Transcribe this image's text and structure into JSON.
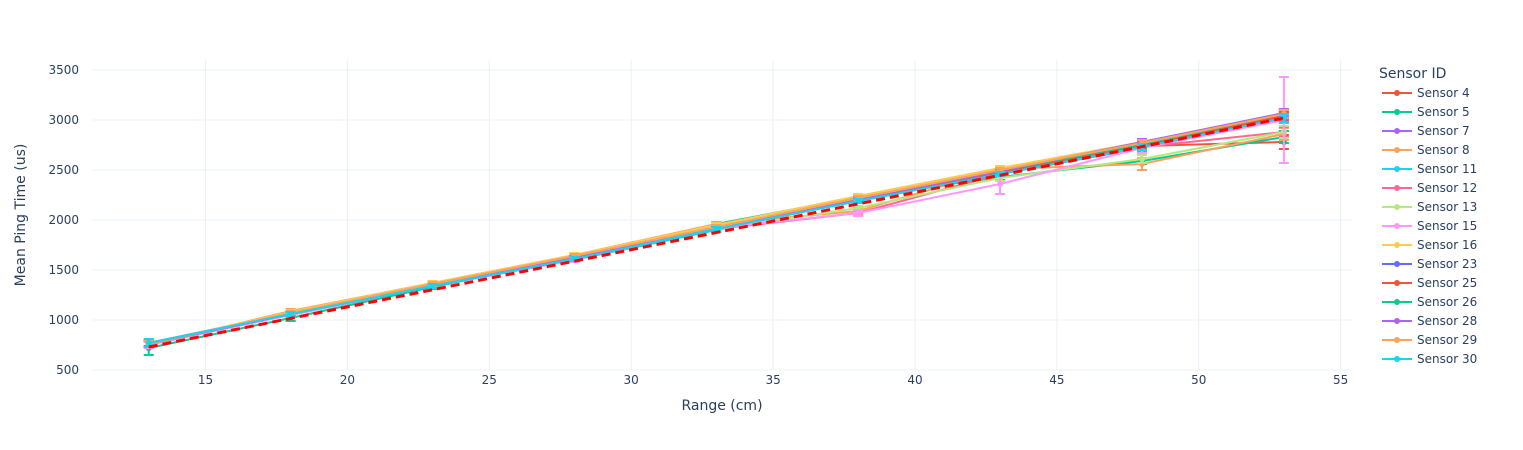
{
  "chart_data": {
    "type": "line",
    "xlabel": "Range (cm)",
    "ylabel": "Mean Ping Time (us)",
    "xlim": [
      11,
      55.4
    ],
    "ylim": [
      500,
      3600
    ],
    "x_ticks": [
      15,
      20,
      25,
      30,
      35,
      40,
      45,
      50,
      55
    ],
    "y_ticks": [
      500,
      1000,
      1500,
      2000,
      2500,
      3000,
      3500
    ],
    "grid": true,
    "legend_title": "Sensor ID",
    "legend_position": "right",
    "x": [
      13,
      18,
      23,
      28,
      33,
      38,
      43,
      48,
      53
    ],
    "series": [
      {
        "name": "Sensor 4",
        "color": "#EF553B",
        "values": [
          760,
          1050,
          1340,
          1620,
          1920,
          2200,
          2470,
          2740,
          2780
        ],
        "errors": [
          30,
          20,
          20,
          20,
          20,
          20,
          30,
          40,
          70
        ]
      },
      {
        "name": "Sensor 5",
        "color": "#00CC96",
        "values": [
          720,
          1020,
          1330,
          1620,
          1960,
          2230,
          2430,
          2590,
          2830
        ],
        "errors": [
          70,
          30,
          20,
          20,
          20,
          20,
          30,
          30,
          60
        ]
      },
      {
        "name": "Sensor 7",
        "color": "#AB63FA",
        "values": [
          760,
          1060,
          1350,
          1620,
          1920,
          2210,
          2490,
          2770,
          3050
        ],
        "errors": [
          30,
          20,
          20,
          20,
          20,
          20,
          20,
          30,
          40
        ]
      },
      {
        "name": "Sensor 8",
        "color": "#FFA15A",
        "values": [
          750,
          1090,
          1370,
          1650,
          1960,
          2090,
          2510,
          2560,
          2860
        ],
        "errors": [
          30,
          20,
          20,
          20,
          20,
          30,
          30,
          60,
          60
        ]
      },
      {
        "name": "Sensor 11",
        "color": "#19D3F3",
        "values": [
          760,
          1060,
          1340,
          1600,
          1900,
          2200,
          2460,
          2720,
          3010
        ],
        "errors": [
          30,
          20,
          20,
          20,
          20,
          20,
          20,
          30,
          40
        ]
      },
      {
        "name": "Sensor 12",
        "color": "#FF6692",
        "values": [
          770,
          1070,
          1350,
          1620,
          1910,
          2070,
          2460,
          2730,
          2880
        ],
        "errors": [
          30,
          20,
          20,
          20,
          20,
          30,
          30,
          40,
          50
        ]
      },
      {
        "name": "Sensor 13",
        "color": "#B6E880",
        "values": [
          760,
          1060,
          1350,
          1620,
          1910,
          2120,
          2420,
          2610,
          2880
        ],
        "errors": [
          30,
          20,
          20,
          20,
          20,
          20,
          30,
          40,
          60
        ]
      },
      {
        "name": "Sensor 15",
        "color": "#FF97FF",
        "values": [
          750,
          1050,
          1340,
          1600,
          1920,
          2070,
          2360,
          2720,
          3000
        ],
        "errors": [
          30,
          20,
          20,
          20,
          20,
          30,
          100,
          50,
          430
        ]
      },
      {
        "name": "Sensor 16",
        "color": "#FECB52",
        "values": [
          760,
          1080,
          1370,
          1650,
          1950,
          2240,
          2520,
          2780,
          3070
        ],
        "errors": [
          30,
          20,
          20,
          20,
          20,
          20,
          20,
          30,
          40
        ]
      },
      {
        "name": "Sensor 23",
        "color": "#636EFA",
        "values": [
          760,
          1060,
          1340,
          1610,
          1910,
          2190,
          2460,
          2740,
          3030
        ],
        "errors": [
          30,
          20,
          20,
          20,
          20,
          20,
          20,
          30,
          40
        ]
      },
      {
        "name": "Sensor 25",
        "color": "#EF553B",
        "values": [
          760,
          1060,
          1350,
          1620,
          1910,
          2200,
          2480,
          2750,
          3040
        ],
        "errors": [
          30,
          20,
          20,
          20,
          20,
          20,
          20,
          30,
          40
        ]
      },
      {
        "name": "Sensor 26",
        "color": "#00CC96",
        "values": [
          770,
          1060,
          1350,
          1620,
          1920,
          2220,
          2490,
          2760,
          3060
        ],
        "errors": [
          30,
          20,
          20,
          20,
          20,
          20,
          20,
          30,
          40
        ]
      },
      {
        "name": "Sensor 28",
        "color": "#AB63FA",
        "values": [
          760,
          1060,
          1350,
          1620,
          1920,
          2210,
          2490,
          2780,
          3070
        ],
        "errors": [
          30,
          20,
          20,
          20,
          20,
          20,
          20,
          30,
          40
        ]
      },
      {
        "name": "Sensor 29",
        "color": "#FFA15A",
        "values": [
          760,
          1070,
          1360,
          1640,
          1930,
          2220,
          2500,
          2770,
          3060
        ],
        "errors": [
          30,
          20,
          20,
          20,
          20,
          20,
          20,
          30,
          40
        ]
      },
      {
        "name": "Sensor 30",
        "color": "#19D3F3",
        "values": [
          770,
          1060,
          1340,
          1610,
          1910,
          2190,
          2460,
          2730,
          3020
        ],
        "errors": [
          40,
          20,
          20,
          20,
          20,
          20,
          20,
          30,
          40
        ]
      }
    ],
    "reference_line": {
      "style": "dashed",
      "color": "#ff0000",
      "x": [
        13,
        53
      ],
      "values": [
        730,
        3020
      ]
    }
  }
}
